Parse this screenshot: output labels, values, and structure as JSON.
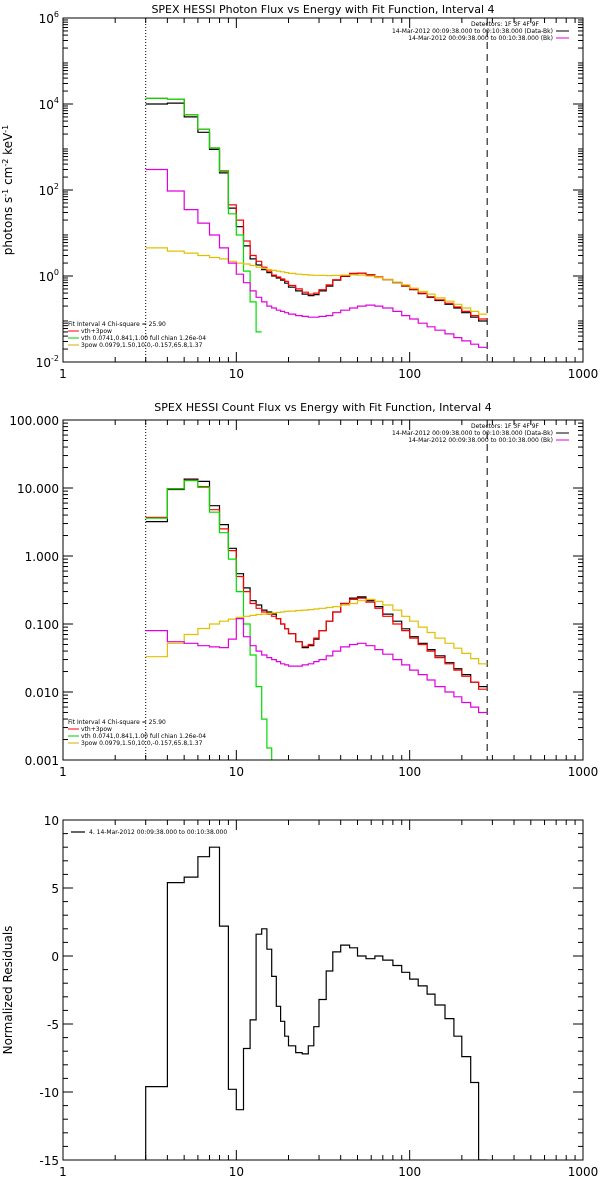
{
  "chart_data": [
    {
      "type": "line",
      "title": "SPEX HESSI Photon Flux vs Energy with Fit Function, Interval 4",
      "ylabel": "photons s$^{-1}$ cm$^{-2}$ keV$^{-1}$",
      "xlabel": "",
      "xscale": "log",
      "yscale": "log",
      "xlim": [
        1,
        1000
      ],
      "ylim": [
        0.01,
        1000000
      ],
      "x_ticks": [
        "1",
        "10",
        "100",
        "1000"
      ],
      "y_ticks": [
        {
          "v": 0.01,
          "base": "10",
          "exp": "-2"
        },
        {
          "v": 1,
          "base": "10",
          "exp": "0"
        },
        {
          "v": 100,
          "base": "10",
          "exp": "2"
        },
        {
          "v": 10000,
          "base": "10",
          "exp": "4"
        },
        {
          "v": 1000000,
          "base": "10",
          "exp": "6"
        }
      ],
      "vlines": [
        {
          "x": 3,
          "style": "dotted"
        },
        {
          "x": 280,
          "style": "dashed"
        }
      ],
      "legend_top": {
        "header": "Detectors: 1F 3F 4F 9F",
        "lines": [
          {
            "text": "14-Mar-2012 00:09:38.000 to 00:10:38.000 (Data-Bk)",
            "color": "#000000"
          },
          {
            "text": "14-Mar-2012 00:09:38.000 to 00:10:38.000 (Bk)",
            "color": "#e000e0"
          }
        ]
      },
      "legend_bottom": {
        "header": "Fit Interval 4    Chi-square = 25.90",
        "lines": [
          {
            "text": "vth+3pow",
            "color": "#ff0000"
          },
          {
            "text": "vth 0.0741,0.841,1.00  full chian 1.26e-04",
            "color": "#00cc00"
          },
          {
            "text": "3pow 0.0979,1.50,10.0,-0.157,65.8,1.37",
            "color": "#d0b000"
          }
        ]
      },
      "series": [
        {
          "color": "#000000",
          "edges": [
            3,
            4,
            5,
            6,
            7,
            8,
            9,
            10,
            11,
            12,
            13,
            14,
            15,
            16,
            17,
            18,
            19,
            20,
            22,
            24,
            26,
            28,
            30,
            33,
            36,
            40,
            45,
            50,
            56,
            63,
            70,
            80,
            90,
            100,
            112,
            126,
            140,
            160,
            180,
            200,
            225,
            250,
            280
          ],
          "values": [
            10000,
            10500,
            5000,
            2200,
            880,
            250,
            38,
            14,
            5,
            2.5,
            1.8,
            1.4,
            1.2,
            1.0,
            0.9,
            0.8,
            0.68,
            0.55,
            0.45,
            0.38,
            0.35,
            0.37,
            0.45,
            0.58,
            0.8,
            0.98,
            1.14,
            1.16,
            1.06,
            0.94,
            0.82,
            0.7,
            0.58,
            0.48,
            0.39,
            0.32,
            0.27,
            0.22,
            0.18,
            0.14,
            0.11,
            0.09
          ]
        },
        {
          "color": "#ff0000",
          "edges": [
            3,
            4,
            5,
            6,
            7,
            8,
            9,
            10,
            11,
            12,
            13,
            14,
            15,
            16,
            17,
            18,
            19,
            20,
            22,
            24,
            26,
            28,
            30,
            33,
            36,
            40,
            45,
            50,
            56,
            63,
            70,
            80,
            90,
            100,
            112,
            126,
            140,
            160,
            180,
            200,
            225,
            250,
            280
          ],
          "values": [
            13500,
            13000,
            5600,
            2600,
            950,
            280,
            45,
            20,
            6.5,
            3,
            2.2,
            1.6,
            1.3,
            1.05,
            0.95,
            0.85,
            0.75,
            0.6,
            0.5,
            0.42,
            0.38,
            0.4,
            0.48,
            0.62,
            0.82,
            1.0,
            1.15,
            1.17,
            1.07,
            0.95,
            0.83,
            0.71,
            0.59,
            0.49,
            0.4,
            0.33,
            0.28,
            0.23,
            0.19,
            0.15,
            0.12,
            0.1
          ]
        },
        {
          "color": "#00dd00",
          "edges": [
            3,
            4,
            5,
            6,
            7,
            8,
            9,
            10,
            11,
            12,
            13,
            14
          ],
          "values": [
            13500,
            13000,
            5600,
            2600,
            950,
            270,
            28,
            9,
            1.3,
            0.25,
            0.05
          ]
        },
        {
          "color": "#e0c000",
          "edges": [
            3,
            4,
            5,
            6,
            7,
            8,
            9,
            10,
            11,
            12,
            13,
            14,
            15,
            16,
            17,
            18,
            19,
            20,
            22,
            24,
            26,
            28,
            30,
            33,
            36,
            40,
            45,
            50,
            56,
            63,
            70,
            80,
            90,
            100,
            112,
            126,
            140,
            160,
            180,
            200,
            225,
            250,
            280
          ],
          "values": [
            4.5,
            3.8,
            3.4,
            3.0,
            2.7,
            2.5,
            2.2,
            2.0,
            1.9,
            1.75,
            1.6,
            1.5,
            1.42,
            1.35,
            1.3,
            1.25,
            1.2,
            1.15,
            1.1,
            1.08,
            1.05,
            1.04,
            1.03,
            1.02,
            1.03,
            1.05,
            1.06,
            1.05,
            1.0,
            0.92,
            0.82,
            0.72,
            0.62,
            0.52,
            0.44,
            0.38,
            0.31,
            0.26,
            0.22,
            0.18,
            0.15,
            0.13
          ]
        },
        {
          "color": "#e000e0",
          "edges": [
            3,
            4,
            5,
            6,
            7,
            8,
            9,
            10,
            11,
            12,
            13,
            14,
            15,
            16,
            17,
            18,
            19,
            20,
            22,
            24,
            26,
            28,
            30,
            33,
            36,
            40,
            45,
            50,
            56,
            63,
            70,
            80,
            90,
            100,
            112,
            126,
            140,
            160,
            180,
            200,
            225,
            250,
            280
          ],
          "values": [
            300,
            95,
            35,
            17,
            9,
            4.5,
            2,
            1.1,
            0.7,
            0.45,
            0.32,
            0.25,
            0.2,
            0.18,
            0.16,
            0.15,
            0.14,
            0.13,
            0.12,
            0.115,
            0.11,
            0.11,
            0.115,
            0.12,
            0.14,
            0.16,
            0.18,
            0.2,
            0.21,
            0.2,
            0.18,
            0.15,
            0.12,
            0.1,
            0.08,
            0.066,
            0.055,
            0.045,
            0.037,
            0.031,
            0.026,
            0.022
          ]
        }
      ]
    },
    {
      "type": "line",
      "title": "SPEX HESSI Count Flux vs Energy with Fit Function, Interval 4",
      "xscale": "log",
      "yscale": "log",
      "xlim": [
        1,
        1000
      ],
      "ylim": [
        0.001,
        100
      ],
      "x_ticks": [
        "1",
        "10",
        "100",
        "1000"
      ],
      "y_ticks": [
        {
          "v": 0.001,
          "label": "0.001"
        },
        {
          "v": 0.01,
          "label": "0.010"
        },
        {
          "v": 0.1,
          "label": "0.100"
        },
        {
          "v": 1,
          "label": "1.000"
        },
        {
          "v": 10,
          "label": "10.000"
        },
        {
          "v": 100,
          "label": "100.000"
        }
      ],
      "vlines": [
        {
          "x": 3,
          "style": "dotted"
        },
        {
          "x": 280,
          "style": "dashed"
        }
      ],
      "legend_top": {
        "header": "Detectors: 1F 3F 4F 9F",
        "lines": [
          {
            "text": "14-Mar-2012 00:09:38.000 to 00:10:38.000 (Data-Bk)",
            "color": "#000000"
          },
          {
            "text": "14-Mar-2012 00:09:38.000 to 00:10:38.000 (Bk)",
            "color": "#e000e0"
          }
        ]
      },
      "legend_bottom": {
        "header": "Fit Interval 4    Chi-square = 25.90",
        "lines": [
          {
            "text": "vth+3pow",
            "color": "#ff0000"
          },
          {
            "text": "vth 0.0741,0.841,1.00  full chian 1.26e-04",
            "color": "#00cc00"
          },
          {
            "text": "3pow 0.0979,1.50,10.0,-0.157,65.8,1.37",
            "color": "#d0b000"
          }
        ]
      },
      "series": [
        {
          "color": "#000000",
          "edges": [
            3,
            4,
            5,
            6,
            7,
            8,
            9,
            10,
            11,
            12,
            13,
            14,
            15,
            16,
            17,
            18,
            19,
            20,
            22,
            24,
            26,
            28,
            30,
            33,
            36,
            40,
            45,
            50,
            56,
            63,
            70,
            80,
            90,
            100,
            112,
            126,
            140,
            160,
            180,
            200,
            225,
            250,
            280
          ],
          "values": [
            3.2,
            9.5,
            13.5,
            12.5,
            5.5,
            2.9,
            1.3,
            0.55,
            0.34,
            0.22,
            0.19,
            0.16,
            0.15,
            0.14,
            0.12,
            0.1,
            0.085,
            0.072,
            0.055,
            0.045,
            0.048,
            0.06,
            0.08,
            0.11,
            0.15,
            0.2,
            0.24,
            0.25,
            0.22,
            0.18,
            0.14,
            0.11,
            0.085,
            0.065,
            0.052,
            0.042,
            0.034,
            0.027,
            0.022,
            0.018,
            0.014,
            0.012
          ]
        },
        {
          "color": "#ff0000",
          "edges": [
            3,
            4,
            5,
            6,
            7,
            8,
            9,
            10,
            11,
            12,
            13,
            14,
            15,
            16,
            17,
            18,
            19,
            20,
            22,
            24,
            26,
            28,
            30,
            33,
            36,
            40,
            45,
            50,
            56,
            63,
            70,
            80,
            90,
            100,
            112,
            126,
            140,
            160,
            180,
            200,
            225,
            250,
            280
          ],
          "values": [
            3.7,
            9.8,
            13,
            10.5,
            4.8,
            2.5,
            1.2,
            0.5,
            0.3,
            0.2,
            0.17,
            0.15,
            0.14,
            0.13,
            0.12,
            0.1,
            0.085,
            0.072,
            0.055,
            0.047,
            0.05,
            0.062,
            0.08,
            0.11,
            0.15,
            0.2,
            0.23,
            0.24,
            0.21,
            0.17,
            0.13,
            0.1,
            0.08,
            0.062,
            0.05,
            0.04,
            0.032,
            0.026,
            0.021,
            0.017,
            0.014,
            0.011
          ]
        },
        {
          "color": "#00dd00",
          "edges": [
            3,
            4,
            5,
            6,
            7,
            8,
            9,
            10,
            11,
            12,
            13,
            14,
            15,
            16,
            17
          ],
          "values": [
            3.6,
            9.7,
            12.8,
            10.2,
            4.4,
            2.2,
            0.9,
            0.3,
            0.1,
            0.035,
            0.012,
            0.004,
            0.0015,
            0.0005
          ]
        },
        {
          "color": "#e0c000",
          "edges": [
            3,
            4,
            5,
            6,
            7,
            8,
            9,
            10,
            11,
            12,
            13,
            14,
            15,
            16,
            17,
            18,
            19,
            20,
            22,
            24,
            26,
            28,
            30,
            33,
            36,
            40,
            45,
            50,
            56,
            63,
            70,
            80,
            90,
            100,
            112,
            126,
            140,
            160,
            180,
            200,
            225,
            250,
            280
          ],
          "values": [
            0.033,
            0.052,
            0.07,
            0.086,
            0.1,
            0.11,
            0.118,
            0.125,
            0.13,
            0.134,
            0.138,
            0.14,
            0.142,
            0.145,
            0.148,
            0.15,
            0.153,
            0.155,
            0.158,
            0.16,
            0.163,
            0.166,
            0.17,
            0.175,
            0.18,
            0.19,
            0.2,
            0.22,
            0.23,
            0.215,
            0.19,
            0.16,
            0.13,
            0.11,
            0.09,
            0.075,
            0.062,
            0.052,
            0.044,
            0.037,
            0.031,
            0.026
          ]
        },
        {
          "color": "#e000e0",
          "edges": [
            3,
            4,
            5,
            6,
            7,
            8,
            9,
            10,
            11,
            12,
            13,
            14,
            15,
            16,
            17,
            18,
            19,
            20,
            22,
            24,
            26,
            28,
            30,
            33,
            36,
            40,
            45,
            50,
            56,
            63,
            70,
            80,
            90,
            100,
            112,
            126,
            140,
            160,
            180,
            200,
            225,
            250,
            280
          ],
          "values": [
            0.08,
            0.055,
            0.052,
            0.048,
            0.046,
            0.045,
            0.06,
            0.12,
            0.065,
            0.048,
            0.04,
            0.035,
            0.032,
            0.03,
            0.028,
            0.026,
            0.025,
            0.024,
            0.024,
            0.025,
            0.026,
            0.028,
            0.03,
            0.034,
            0.04,
            0.046,
            0.05,
            0.052,
            0.048,
            0.042,
            0.036,
            0.03,
            0.025,
            0.021,
            0.018,
            0.015,
            0.012,
            0.01,
            0.0085,
            0.007,
            0.006,
            0.005
          ]
        }
      ]
    },
    {
      "type": "line",
      "title": "",
      "ylabel": "Normalized Residuals",
      "xscale": "log",
      "yscale": "linear",
      "xlim": [
        1,
        1000
      ],
      "ylim": [
        -15,
        10
      ],
      "x_ticks": [
        "1",
        "10",
        "100",
        "1000"
      ],
      "y_ticks": [
        {
          "v": -15,
          "label": "-15"
        },
        {
          "v": -10,
          "label": "-10"
        },
        {
          "v": -5,
          "label": "-5"
        },
        {
          "v": 0,
          "label": "0"
        },
        {
          "v": 5,
          "label": "5"
        },
        {
          "v": 10,
          "label": "10"
        }
      ],
      "legend_top": {
        "header": "",
        "lines": [
          {
            "text": "4. 14-Mar-2012 00:09:38.000 to 00:10:38.000",
            "color": "#000000"
          }
        ]
      },
      "series": [
        {
          "color": "#000000",
          "edges": [
            3,
            4,
            5,
            6,
            7,
            8,
            9,
            10,
            11,
            12,
            13,
            14,
            15,
            16,
            17,
            18,
            19,
            20,
            22,
            24,
            26,
            28,
            30,
            33,
            36,
            40,
            45,
            50,
            56,
            63,
            70,
            80,
            90,
            100,
            112,
            126,
            140,
            160,
            180,
            200,
            225,
            250,
            280
          ],
          "values": [
            -9.6,
            5.4,
            5.8,
            7.3,
            8.0,
            2.2,
            -9.8,
            -11.3,
            -6.8,
            -4.7,
            1.6,
            2.0,
            0.5,
            -1.5,
            -3.7,
            -4.8,
            -5.9,
            -6.6,
            -7.1,
            -7.2,
            -6.6,
            -5.2,
            -3.2,
            -1.1,
            0.3,
            0.8,
            0.6,
            0.0,
            -0.2,
            0.0,
            -0.3,
            -0.7,
            -1.2,
            -1.7,
            -2.2,
            -2.8,
            -3.6,
            -4.6,
            -5.9,
            -7.4,
            -9.3,
            -15
          ]
        }
      ]
    }
  ]
}
